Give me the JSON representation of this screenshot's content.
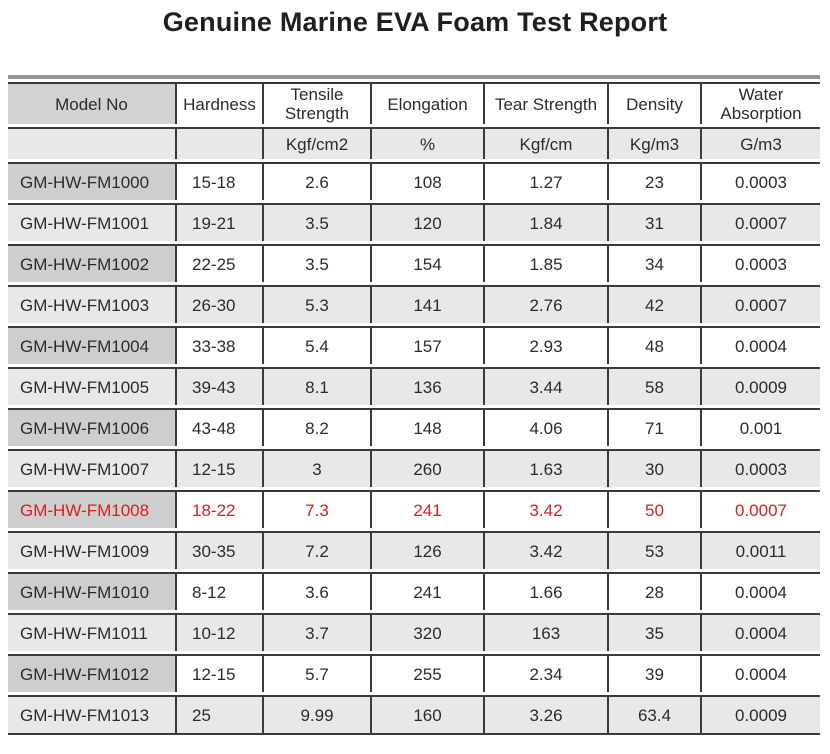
{
  "title": "Genuine Marine EVA Foam Test Report",
  "colors": {
    "highlight_text": "#d91e1e",
    "header_model_bg": "#d2d2d2",
    "row_dark_model_bg": "#cecece",
    "row_light_bg": "#e8e8e8",
    "border_dark": "#3a3a3a",
    "border_top_outer": "#949494"
  },
  "table": {
    "columns": [
      {
        "key": "model",
        "label": "Model No",
        "unit": ""
      },
      {
        "key": "hardness",
        "label": "Hardness",
        "unit": ""
      },
      {
        "key": "tensile",
        "label": "Tensile Strength",
        "unit": "Kgf/cm2"
      },
      {
        "key": "elongation",
        "label": "Elongation",
        "unit": "%"
      },
      {
        "key": "tear",
        "label": "Tear Strength",
        "unit": "Kgf/cm"
      },
      {
        "key": "density",
        "label": "Density",
        "unit": "Kg/m3"
      },
      {
        "key": "water",
        "label": "Water Absorption",
        "unit": "G/m3"
      }
    ],
    "rows": [
      {
        "highlight": false,
        "values": [
          "GM-HW-FM1000",
          "15-18",
          "2.6",
          "108",
          "1.27",
          "23",
          "0.0003"
        ]
      },
      {
        "highlight": false,
        "values": [
          "GM-HW-FM1001",
          "19-21",
          "3.5",
          "120",
          "1.84",
          "31",
          "0.0007"
        ]
      },
      {
        "highlight": false,
        "values": [
          "GM-HW-FM1002",
          "22-25",
          "3.5",
          "154",
          "1.85",
          "34",
          "0.0003"
        ]
      },
      {
        "highlight": false,
        "values": [
          "GM-HW-FM1003",
          "26-30",
          "5.3",
          "141",
          "2.76",
          "42",
          "0.0007"
        ]
      },
      {
        "highlight": false,
        "values": [
          "GM-HW-FM1004",
          "33-38",
          "5.4",
          "157",
          "2.93",
          "48",
          "0.0004"
        ]
      },
      {
        "highlight": false,
        "values": [
          "GM-HW-FM1005",
          "39-43",
          "8.1",
          "136",
          "3.44",
          "58",
          "0.0009"
        ]
      },
      {
        "highlight": false,
        "values": [
          "GM-HW-FM1006",
          "43-48",
          "8.2",
          "148",
          "4.06",
          "71",
          "0.001"
        ]
      },
      {
        "highlight": false,
        "values": [
          "GM-HW-FM1007",
          "12-15",
          "3",
          "260",
          "1.63",
          "30",
          "0.0003"
        ]
      },
      {
        "highlight": true,
        "values": [
          "GM-HW-FM1008",
          "18-22",
          "7.3",
          "241",
          "3.42",
          "50",
          "0.0007"
        ]
      },
      {
        "highlight": false,
        "values": [
          "GM-HW-FM1009",
          "30-35",
          "7.2",
          "126",
          "3.42",
          "53",
          "0.0011"
        ]
      },
      {
        "highlight": false,
        "values": [
          "GM-HW-FM1010",
          "8-12",
          "3.6",
          "241",
          "1.66",
          "28",
          "0.0004"
        ]
      },
      {
        "highlight": false,
        "values": [
          "GM-HW-FM1011",
          "10-12",
          "3.7",
          "320",
          "163",
          "35",
          "0.0004"
        ]
      },
      {
        "highlight": false,
        "values": [
          "GM-HW-FM1012",
          "12-15",
          "5.7",
          "255",
          "2.34",
          "39",
          "0.0004"
        ]
      },
      {
        "highlight": false,
        "values": [
          "GM-HW-FM1013",
          "25",
          "9.99",
          "160",
          "3.26",
          "63.4",
          "0.0009"
        ]
      }
    ]
  }
}
